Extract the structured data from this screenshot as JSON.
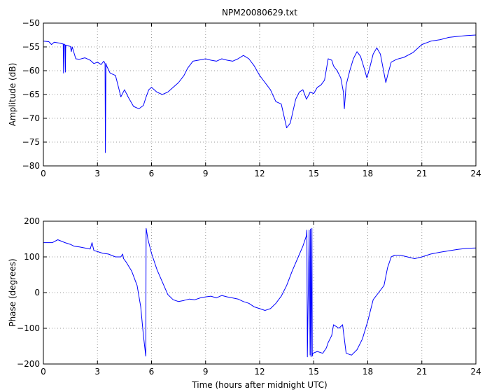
{
  "chart_data": [
    {
      "type": "line",
      "title": "NPM20080629.txt",
      "xlabel": "",
      "ylabel": "Amplitude (dB)",
      "xlim": [
        0,
        24
      ],
      "ylim": [
        -80,
        -50
      ],
      "xticks": [
        0,
        3,
        6,
        9,
        12,
        15,
        18,
        21,
        24
      ],
      "yticks": [
        -80,
        -75,
        -70,
        -65,
        -60,
        -55,
        -50
      ],
      "grid": true,
      "series": [
        {
          "color": "#0000ff",
          "x": [
            0,
            0.3,
            0.45,
            0.6,
            0.9,
            1.1,
            1.12,
            1.14,
            1.2,
            1.22,
            1.24,
            1.3,
            1.5,
            1.55,
            1.6,
            1.8,
            2.0,
            2.3,
            2.6,
            2.8,
            3.0,
            3.2,
            3.35,
            3.42,
            3.44,
            3.47,
            3.5,
            3.7,
            4.0,
            4.2,
            4.3,
            4.5,
            4.7,
            5.0,
            5.3,
            5.55,
            5.7,
            5.85,
            6.0,
            6.3,
            6.6,
            6.9,
            7.2,
            7.5,
            7.8,
            8.0,
            8.3,
            8.6,
            9.0,
            9.3,
            9.6,
            9.9,
            10.2,
            10.5,
            10.8,
            11.1,
            11.4,
            11.7,
            12.0,
            12.3,
            12.6,
            12.9,
            13.2,
            13.5,
            13.7,
            14.0,
            14.2,
            14.4,
            14.6,
            14.8,
            15.0,
            15.2,
            15.4,
            15.6,
            15.8,
            16.0,
            16.1,
            16.3,
            16.5,
            16.65,
            16.7,
            16.8,
            17.0,
            17.2,
            17.4,
            17.6,
            17.8,
            17.95,
            18.1,
            18.3,
            18.5,
            18.7,
            18.85,
            19.0,
            19.1,
            19.3,
            19.6,
            20.0,
            20.5,
            21.0,
            21.5,
            22.0,
            22.5,
            23.0,
            23.5,
            24.0
          ],
          "y": [
            -53.8,
            -53.9,
            -54.5,
            -54.0,
            -54.2,
            -54.4,
            -60.5,
            -54.4,
            -54.6,
            -60.3,
            -54.6,
            -54.7,
            -54.9,
            -56.0,
            -55.0,
            -57.5,
            -57.6,
            -57.3,
            -57.8,
            -58.5,
            -58.2,
            -58.7,
            -58.0,
            -58.5,
            -77.2,
            -58.5,
            -58.9,
            -60.5,
            -61.0,
            -64.0,
            -65.5,
            -64.0,
            -65.5,
            -67.5,
            -68.0,
            -67.3,
            -65.5,
            -64.0,
            -63.5,
            -64.5,
            -65.0,
            -64.5,
            -63.5,
            -62.5,
            -61.0,
            -59.5,
            -58.0,
            -57.8,
            -57.5,
            -57.8,
            -58.0,
            -57.5,
            -57.8,
            -58.0,
            -57.5,
            -56.8,
            -57.5,
            -59.0,
            -61.0,
            -62.5,
            -64.0,
            -66.5,
            -67.0,
            -72.0,
            -71.0,
            -66.0,
            -64.5,
            -64.0,
            -66.0,
            -64.5,
            -64.8,
            -63.5,
            -63.0,
            -62.0,
            -57.5,
            -57.8,
            -59.0,
            -60.0,
            -61.5,
            -64.5,
            -68.0,
            -63.0,
            -60.0,
            -57.5,
            -56.0,
            -57.0,
            -59.5,
            -61.5,
            -59.5,
            -56.5,
            -55.2,
            -56.5,
            -59.5,
            -62.5,
            -61.0,
            -58.2,
            -57.6,
            -57.2,
            -56.2,
            -54.5,
            -53.8,
            -53.5,
            -53.0,
            -52.8,
            -52.6,
            -52.5
          ]
        }
      ]
    },
    {
      "type": "line",
      "title": "",
      "xlabel": "Time (hours after midnight UTC)",
      "ylabel": "Phase (degrees)",
      "xlim": [
        0,
        24
      ],
      "ylim": [
        -200,
        200
      ],
      "xticks": [
        0,
        3,
        6,
        9,
        12,
        15,
        18,
        21,
        24
      ],
      "yticks": [
        -200,
        -100,
        0,
        100,
        200
      ],
      "grid": true,
      "series": [
        {
          "color": "#0000ff",
          "x": [
            0,
            0.5,
            0.8,
            1.2,
            1.5,
            1.7,
            2.0,
            2.3,
            2.6,
            2.7,
            2.8,
            3.0,
            3.3,
            3.6,
            4.0,
            4.3,
            4.4,
            4.45,
            4.6,
            4.9,
            5.2,
            5.4,
            5.55,
            5.68,
            5.7,
            5.72,
            5.8,
            6.0,
            6.3,
            6.6,
            6.9,
            7.2,
            7.5,
            7.8,
            8.1,
            8.4,
            8.7,
            9.0,
            9.3,
            9.6,
            9.9,
            10.2,
            10.5,
            10.8,
            11.1,
            11.4,
            11.7,
            12.0,
            12.3,
            12.6,
            12.9,
            13.2,
            13.5,
            13.8,
            14.1,
            14.4,
            14.6,
            14.62,
            14.65,
            14.75,
            14.8,
            14.82,
            14.85,
            14.9,
            14.92,
            14.95,
            15.2,
            15.5,
            15.7,
            15.8,
            16.0,
            16.1,
            16.4,
            16.6,
            16.8,
            17.1,
            17.4,
            17.7,
            18.0,
            18.3,
            18.6,
            18.9,
            19.1,
            19.3,
            19.5,
            19.8,
            20.2,
            20.6,
            21.0,
            21.5,
            22.0,
            22.5,
            23.0,
            23.5,
            24.0
          ],
          "y": [
            140,
            140,
            148,
            140,
            135,
            130,
            128,
            125,
            122,
            140,
            118,
            115,
            110,
            108,
            100,
            100,
            108,
            95,
            85,
            60,
            20,
            -40,
            -120,
            -178,
            180,
            175,
            150,
            110,
            65,
            30,
            -5,
            -20,
            -25,
            -22,
            -18,
            -20,
            -15,
            -12,
            -10,
            -15,
            -8,
            -12,
            -15,
            -18,
            -25,
            -30,
            -40,
            -45,
            -50,
            -45,
            -30,
            -10,
            20,
            60,
            95,
            130,
            160,
            175,
            -180,
            175,
            -175,
            178,
            -180,
            180,
            -178,
            -170,
            -165,
            -170,
            -155,
            -140,
            -120,
            -90,
            -100,
            -90,
            -170,
            -175,
            -160,
            -130,
            -80,
            -20,
            0,
            20,
            70,
            100,
            105,
            105,
            100,
            95,
            100,
            108,
            113,
            117,
            121,
            124,
            125
          ]
        }
      ]
    }
  ]
}
